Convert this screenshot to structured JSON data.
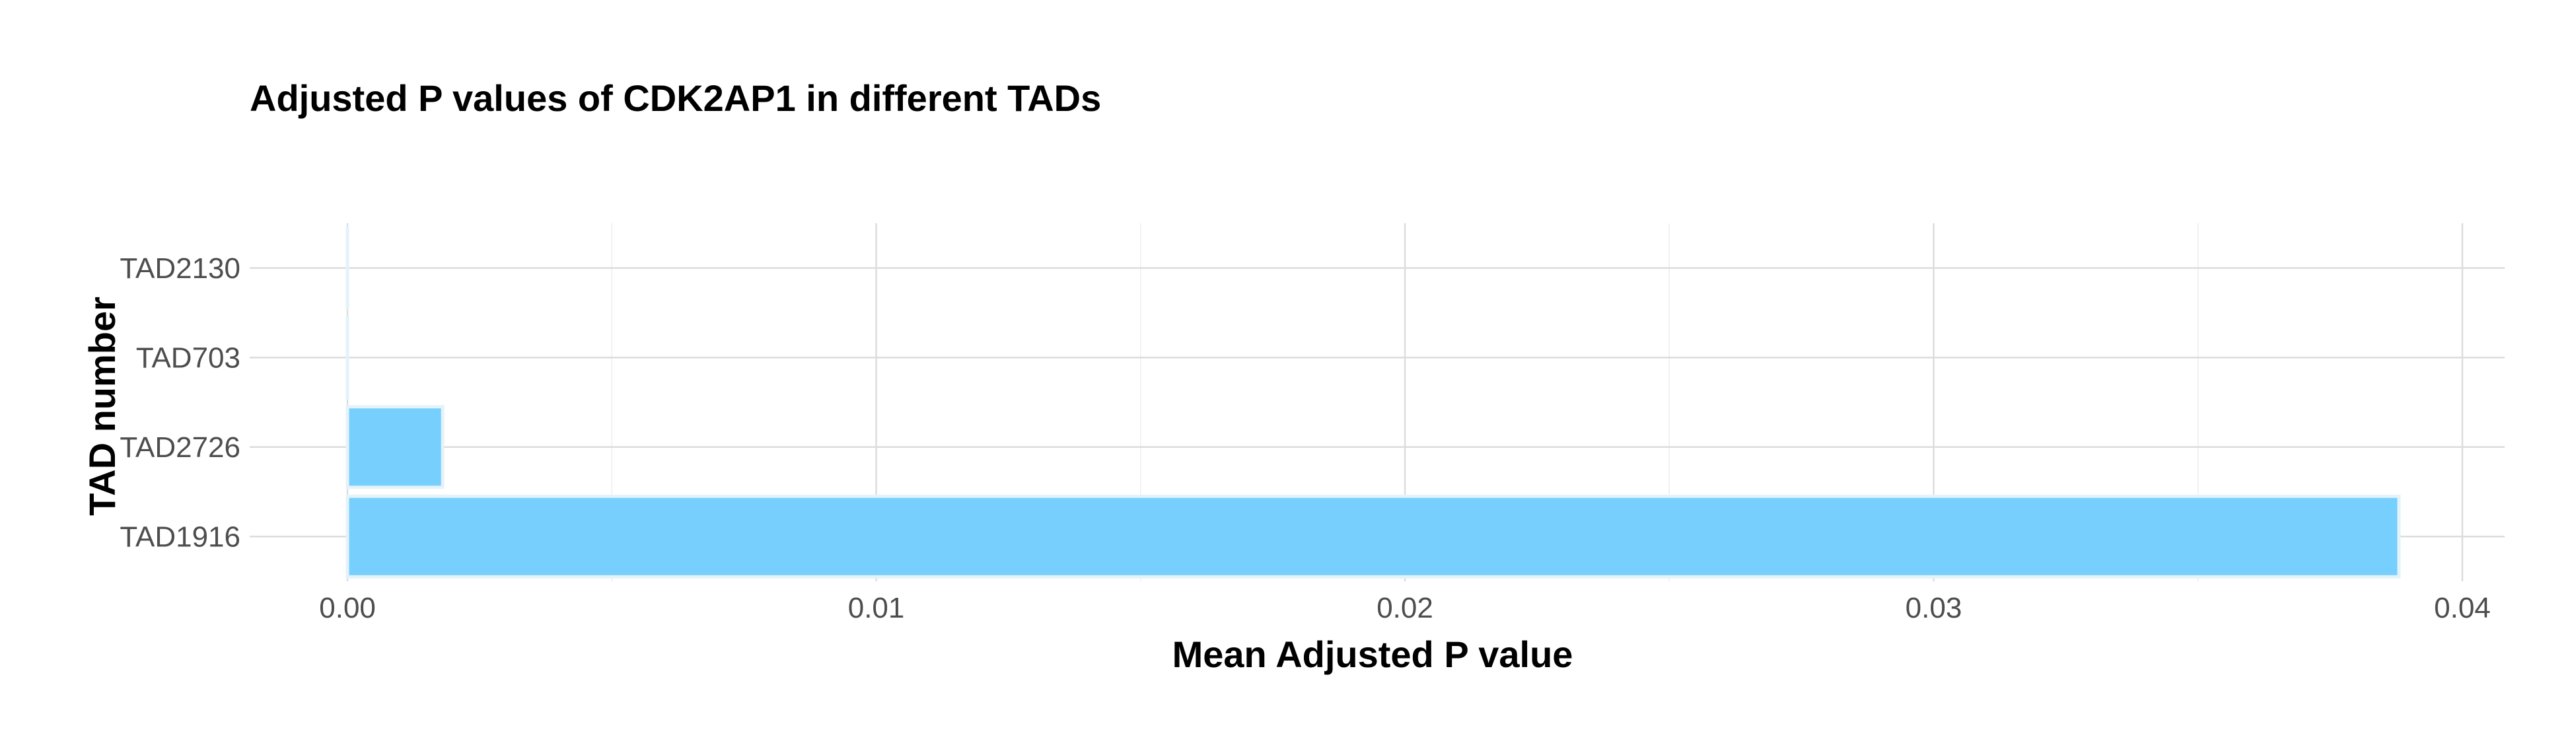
{
  "chart_data": {
    "type": "bar",
    "orientation": "horizontal",
    "title": "Adjusted P values of CDK2AP1 in different TADs",
    "xlabel": "Mean Adjusted P value",
    "ylabel": "TAD number",
    "categories": [
      "TAD1916",
      "TAD2726",
      "TAD703",
      "TAD2130"
    ],
    "values": [
      0.0388,
      0.0018,
      0.0,
      0.0
    ],
    "xlim": [
      -0.00185,
      0.0408
    ],
    "xticks": [
      0.0,
      0.01,
      0.02,
      0.03,
      0.04
    ],
    "xtick_labels": [
      "0.00",
      "0.01",
      "0.02",
      "0.03",
      "0.04"
    ],
    "grid": true,
    "legend": "none",
    "bar_color": "#76CFFC",
    "bar_edge_color": "#E4F2FA"
  }
}
